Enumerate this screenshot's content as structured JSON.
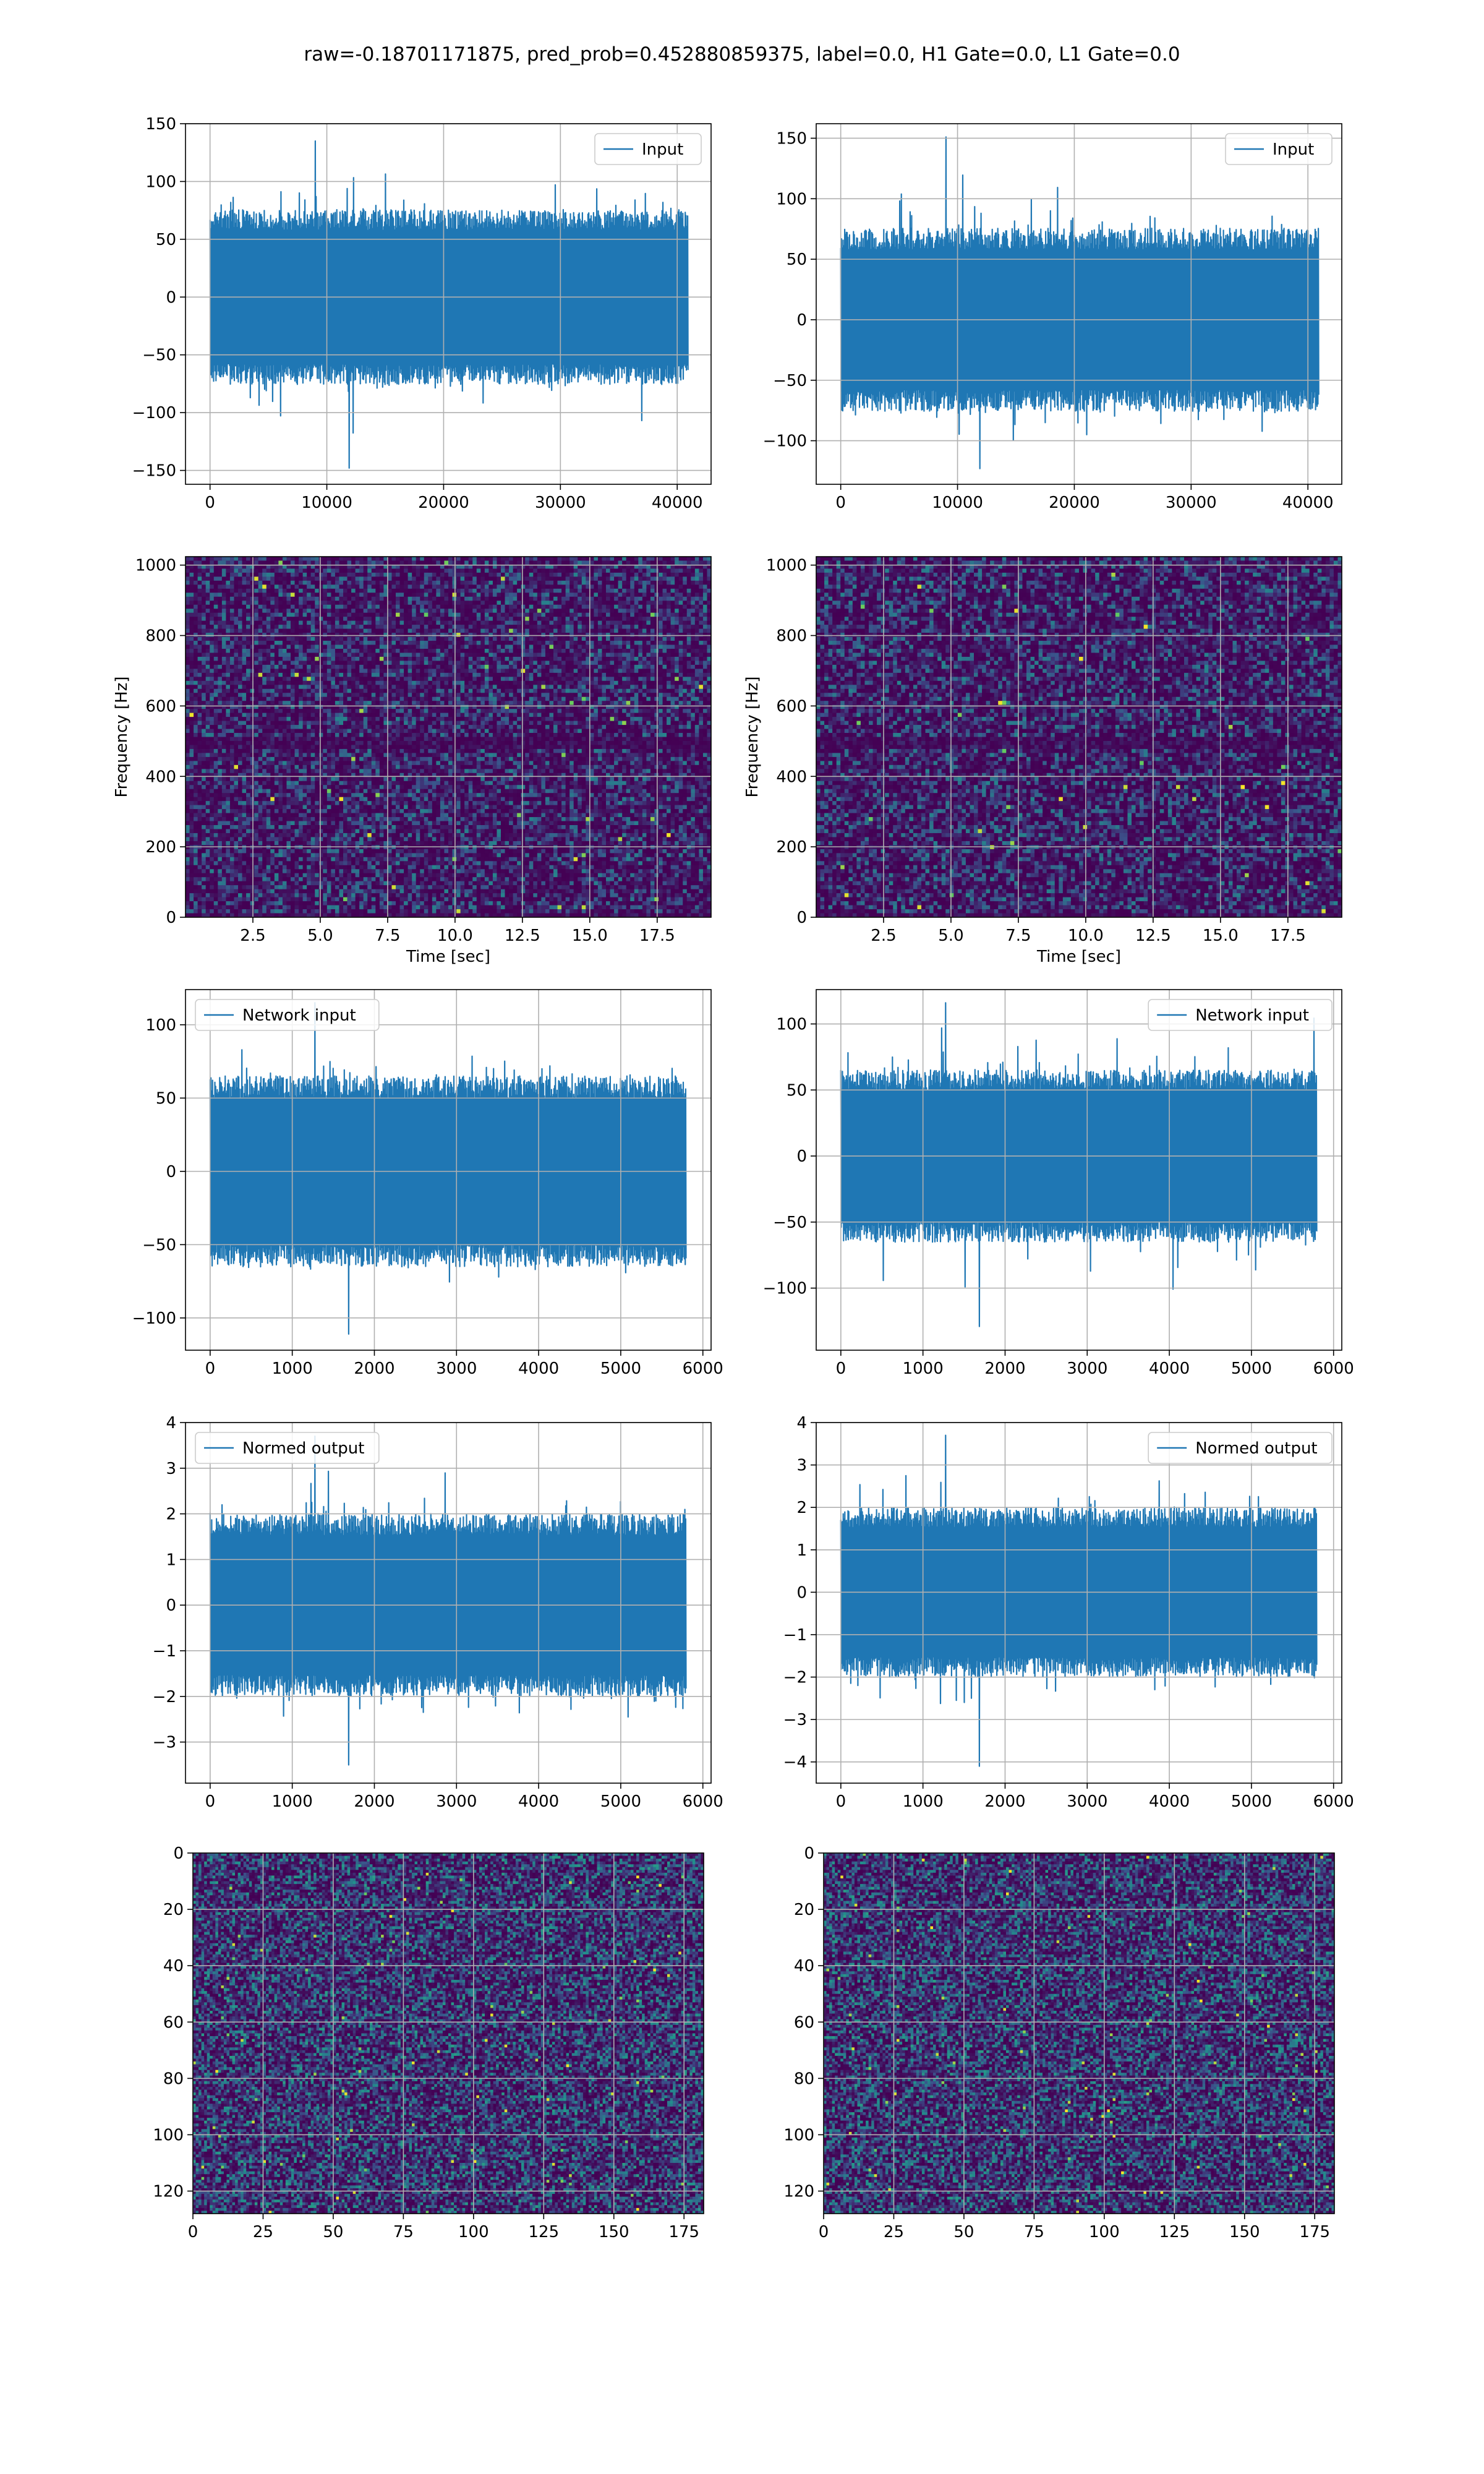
{
  "figure": {
    "suptitle": "raw=-0.18701171875, pred_prob=0.452880859375, label=0.0, H1 Gate=0.0, L1 Gate=0.0"
  },
  "colors": {
    "line": "#1f77b4",
    "grid": "#b0b0b0",
    "viridis": [
      "#440154",
      "#3b528b",
      "#21918c",
      "#5ec962",
      "#fde725"
    ]
  },
  "chart_data": [
    {
      "id": "input-h1",
      "type": "line",
      "legend": "Input",
      "legend_loc": "upper right",
      "xticks": [
        "0",
        "10000",
        "20000",
        "30000",
        "40000"
      ],
      "yticks": [
        "150",
        "100",
        "50",
        "0",
        "−50",
        "−100",
        "−150"
      ],
      "xlim": [
        -2100,
        42900
      ],
      "ylim": [
        -162,
        150
      ],
      "series": [
        {
          "n": 40960,
          "envelope_abs": 72,
          "peak_max": 135,
          "peak_min": -148,
          "seed": 11
        }
      ],
      "grid": true
    },
    {
      "id": "input-l1",
      "type": "line",
      "legend": "Input",
      "legend_loc": "upper right",
      "xticks": [
        "0",
        "10000",
        "20000",
        "30000",
        "40000"
      ],
      "yticks": [
        "150",
        "100",
        "50",
        "0",
        "−50",
        "−100"
      ],
      "xlim": [
        -2100,
        42900
      ],
      "ylim": [
        -136,
        162
      ],
      "series": [
        {
          "n": 40960,
          "envelope_abs": 72,
          "peak_max": 151,
          "peak_min": -123,
          "seed": 23
        }
      ],
      "grid": true
    },
    {
      "id": "spectrogram-h1",
      "type": "heatmap",
      "subtype": "spectrogram",
      "xlabel": "Time [sec]",
      "ylabel": "Frequency [Hz]",
      "xticks": [
        "2.5",
        "5.0",
        "7.5",
        "10.0",
        "12.5",
        "15.0",
        "17.5"
      ],
      "yticks": [
        "1000",
        "800",
        "600",
        "400",
        "200",
        "0"
      ],
      "xlim": [
        0,
        19.5
      ],
      "ylim": [
        0,
        1024
      ],
      "grid": true,
      "colormap": "viridis",
      "seed": 31
    },
    {
      "id": "spectrogram-l1",
      "type": "heatmap",
      "subtype": "spectrogram",
      "xlabel": "Time [sec]",
      "ylabel": "Frequency [Hz]",
      "xticks": [
        "2.5",
        "5.0",
        "7.5",
        "10.0",
        "12.5",
        "15.0",
        "17.5"
      ],
      "yticks": [
        "1000",
        "800",
        "600",
        "400",
        "200",
        "0"
      ],
      "xlim": [
        0,
        19.5
      ],
      "ylim": [
        0,
        1024
      ],
      "grid": true,
      "colormap": "viridis",
      "seed": 37
    },
    {
      "id": "network-input-h1",
      "type": "line",
      "legend": "Network input",
      "legend_loc": "upper left",
      "xticks": [
        "0",
        "1000",
        "2000",
        "3000",
        "4000",
        "5000",
        "6000"
      ],
      "yticks": [
        "100",
        "50",
        "0",
        "−50",
        "−100"
      ],
      "xlim": [
        -300,
        6100
      ],
      "ylim": [
        -122,
        124
      ],
      "series": [
        {
          "n": 5800,
          "envelope_abs": 62,
          "peak_max": 115,
          "peak_min": -111,
          "seed": 41
        }
      ],
      "grid": true
    },
    {
      "id": "network-input-l1",
      "type": "line",
      "legend": "Network input",
      "legend_loc": "upper right",
      "xticks": [
        "0",
        "1000",
        "2000",
        "3000",
        "4000",
        "5000",
        "6000"
      ],
      "yticks": [
        "100",
        "50",
        "0",
        "−50",
        "−100"
      ],
      "xlim": [
        -300,
        6100
      ],
      "ylim": [
        -147,
        126
      ],
      "series": [
        {
          "n": 5800,
          "envelope_abs": 62,
          "peak_max": 116,
          "peak_min": -129,
          "seed": 43
        }
      ],
      "grid": true
    },
    {
      "id": "normed-output-h1",
      "type": "line",
      "legend": "Normed output",
      "legend_loc": "upper left",
      "xticks": [
        "0",
        "1000",
        "2000",
        "3000",
        "4000",
        "5000",
        "6000"
      ],
      "yticks": [
        "4",
        "3",
        "2",
        "1",
        "0",
        "−1",
        "−2",
        "−3"
      ],
      "xlim": [
        -300,
        6100
      ],
      "ylim": [
        -3.9,
        4.0
      ],
      "series": [
        {
          "n": 5800,
          "envelope_abs": 1.9,
          "peak_max": 3.7,
          "peak_min": -3.5,
          "seed": 53
        }
      ],
      "grid": true
    },
    {
      "id": "normed-output-l1",
      "type": "line",
      "legend": "Normed output",
      "legend_loc": "upper right",
      "xticks": [
        "0",
        "1000",
        "2000",
        "3000",
        "4000",
        "5000",
        "6000"
      ],
      "yticks": [
        "4",
        "3",
        "2",
        "1",
        "0",
        "−1",
        "−2",
        "−3",
        "−4"
      ],
      "xlim": [
        -300,
        6100
      ],
      "ylim": [
        -4.5,
        4.0
      ],
      "series": [
        {
          "n": 5800,
          "envelope_abs": 1.9,
          "peak_max": 3.7,
          "peak_min": -4.1,
          "seed": 59
        }
      ],
      "grid": true
    },
    {
      "id": "image-h1",
      "type": "heatmap",
      "subtype": "image",
      "xticks": [
        "0",
        "25",
        "50",
        "75",
        "100",
        "125",
        "150",
        "175"
      ],
      "yticks": [
        "0",
        "20",
        "40",
        "60",
        "80",
        "100",
        "120"
      ],
      "xlim": [
        0,
        182
      ],
      "ylim": [
        0,
        128
      ],
      "grid": true,
      "colormap": "viridis",
      "seed": 61
    },
    {
      "id": "image-l1",
      "type": "heatmap",
      "subtype": "image",
      "xticks": [
        "0",
        "25",
        "50",
        "75",
        "100",
        "125",
        "150",
        "175"
      ],
      "yticks": [
        "0",
        "20",
        "40",
        "60",
        "80",
        "100",
        "120"
      ],
      "xlim": [
        0,
        182
      ],
      "ylim": [
        0,
        128
      ],
      "grid": true,
      "colormap": "viridis",
      "seed": 67
    }
  ]
}
